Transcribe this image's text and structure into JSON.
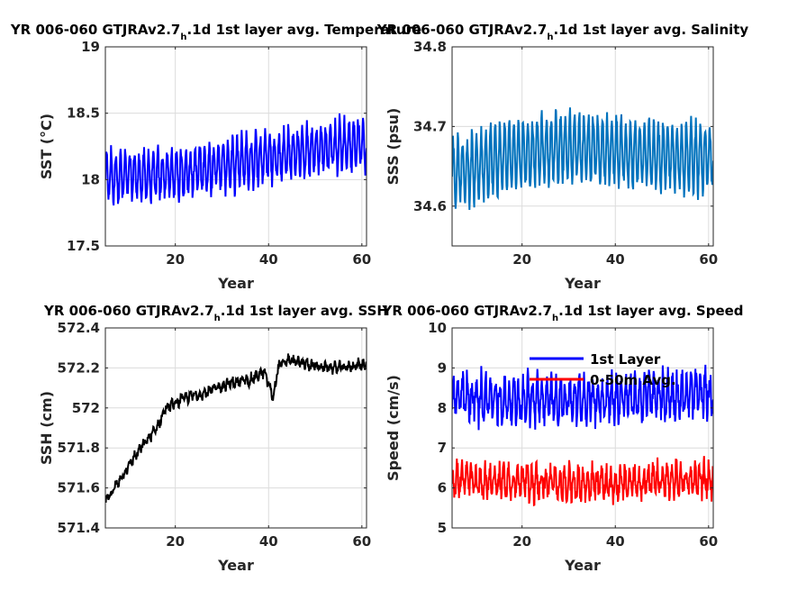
{
  "figure": {
    "background": "#ffffff"
  },
  "chart_data": [
    {
      "type": "line",
      "title_main": "YR 006-060 GTJRAv2.7",
      "title_sub": "h",
      "title_rest": ".1d 1st layer avg. Temperature",
      "xlabel": "Year",
      "ylabel": "SST (°C)",
      "xlim": [
        5,
        61
      ],
      "ylim": [
        17.5,
        19
      ],
      "xticks": [
        20,
        40,
        60
      ],
      "yticks": [
        17.5,
        18,
        18.5,
        19
      ],
      "ytick_labels": [
        "17.5",
        "18",
        "18.5",
        "19"
      ],
      "grid": true,
      "series": [
        {
          "color": "#0000ff",
          "trend": [
            [
              5,
              18.02
            ],
            [
              20,
              18.04
            ],
            [
              40,
              18.17
            ],
            [
              61,
              18.28
            ]
          ],
          "amplitude": 0.17,
          "period": 1,
          "noise": 0.05
        }
      ]
    },
    {
      "type": "line",
      "title_main": "YR 006-060 GTJRAv2.7",
      "title_sub": "h",
      "title_rest": ".1d 1st layer avg. Salinity",
      "xlabel": "Year",
      "ylabel": "SSS (psu)",
      "xlim": [
        5,
        61
      ],
      "ylim": [
        34.55,
        34.8
      ],
      "xticks": [
        20,
        40,
        60
      ],
      "yticks": [
        34.6,
        34.7,
        34.8
      ],
      "ytick_labels": [
        "34.6",
        "34.7",
        "34.8"
      ],
      "grid": true,
      "series": [
        {
          "color": "#0072bd",
          "trend": [
            [
              5,
              34.64
            ],
            [
              15,
              34.66
            ],
            [
              28,
              34.675
            ],
            [
              45,
              34.665
            ],
            [
              61,
              34.66
            ]
          ],
          "amplitude": 0.04,
          "period": 1,
          "noise": 0.006
        }
      ]
    },
    {
      "type": "line",
      "title_main": "YR 006-060 GTJRAv2.7",
      "title_sub": "h",
      "title_rest": ".1d 1st layer avg. SSH",
      "xlabel": "Year",
      "ylabel": "SSH (cm)",
      "xlim": [
        5,
        61
      ],
      "ylim": [
        571.4,
        572.4
      ],
      "xticks": [
        20,
        40,
        60
      ],
      "yticks": [
        571.4,
        571.6,
        571.8,
        572,
        572.2,
        572.4
      ],
      "ytick_labels": [
        "571.4",
        "571.6",
        "571.8",
        "572",
        "572.2",
        "572.4"
      ],
      "grid": true,
      "series": [
        {
          "color": "#000000",
          "trend": [
            [
              5,
              571.53
            ],
            [
              8,
              571.64
            ],
            [
              12,
              571.78
            ],
            [
              16,
              571.9
            ],
            [
              18,
              572.0
            ],
            [
              22,
              572.05
            ],
            [
              27,
              572.08
            ],
            [
              31,
              572.12
            ],
            [
              36,
              572.14
            ],
            [
              39,
              572.18
            ],
            [
              40,
              572.12
            ],
            [
              41,
              572.05
            ],
            [
              42,
              572.2
            ],
            [
              44,
              572.24
            ],
            [
              50,
              572.21
            ],
            [
              55,
              572.2
            ],
            [
              61,
              572.22
            ]
          ],
          "amplitude": 0.015,
          "period": 1,
          "noise": 0.02
        }
      ]
    },
    {
      "type": "line",
      "title_main": "YR 006-060 GTJRAv2.7",
      "title_sub": "h",
      "title_rest": ".1d 1st layer avg. Speed",
      "xlabel": "Year",
      "ylabel": "Speed (cm/s)",
      "xlim": [
        5,
        61
      ],
      "ylim": [
        5,
        10
      ],
      "xticks": [
        20,
        40,
        60
      ],
      "yticks": [
        5,
        6,
        7,
        8,
        9,
        10
      ],
      "ytick_labels": [
        "5",
        "6",
        "7",
        "8",
        "9",
        "10"
      ],
      "grid": true,
      "legend": {
        "position": "top",
        "entries": [
          "1st Layer",
          "0-50m Avg."
        ]
      },
      "series": [
        {
          "name": "1st Layer",
          "color": "#0000ff",
          "trend": [
            [
              5,
              8.25
            ],
            [
              20,
              8.2
            ],
            [
              40,
              8.25
            ],
            [
              61,
              8.35
            ]
          ],
          "amplitude": 0.45,
          "period": 1,
          "noise": 0.3
        },
        {
          "name": "0-50m Avg.",
          "color": "#ff0000",
          "trend": [
            [
              5,
              6.2
            ],
            [
              20,
              6.15
            ],
            [
              40,
              6.1
            ],
            [
              61,
              6.25
            ]
          ],
          "amplitude": 0.3,
          "period": 1,
          "noise": 0.25
        }
      ]
    }
  ]
}
